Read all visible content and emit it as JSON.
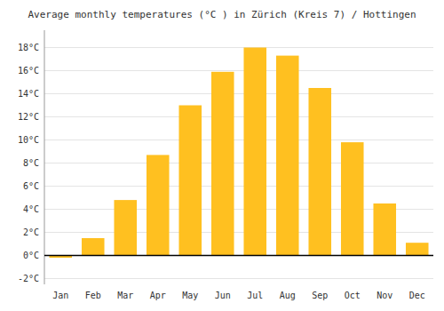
{
  "chart_data": {
    "type": "bar",
    "title": "Average monthly temperatures (°C ) in Zürich (Kreis 7) / Hottingen",
    "categories": [
      "Jan",
      "Feb",
      "Mar",
      "Apr",
      "May",
      "Jun",
      "Jul",
      "Aug",
      "Sep",
      "Oct",
      "Nov",
      "Dec"
    ],
    "values": [
      -0.2,
      1.5,
      4.8,
      8.7,
      13.0,
      15.9,
      18.0,
      17.3,
      14.5,
      9.8,
      4.5,
      1.1
    ],
    "color": "#FFC020",
    "ylim": [
      -2.5,
      19.5
    ],
    "yticks": [
      {
        "value": -2,
        "label": "-2°C"
      },
      {
        "value": 0,
        "label": "0°C"
      },
      {
        "value": 2,
        "label": "2°C"
      },
      {
        "value": 4,
        "label": "4°C"
      },
      {
        "value": 6,
        "label": "6°C"
      },
      {
        "value": 8,
        "label": "8°C"
      },
      {
        "value": 10,
        "label": "10°C"
      },
      {
        "value": 12,
        "label": "12°C"
      },
      {
        "value": 14,
        "label": "14°C"
      },
      {
        "value": 16,
        "label": "16°C"
      },
      {
        "value": 18,
        "label": "18°C"
      }
    ],
    "grid": true
  }
}
